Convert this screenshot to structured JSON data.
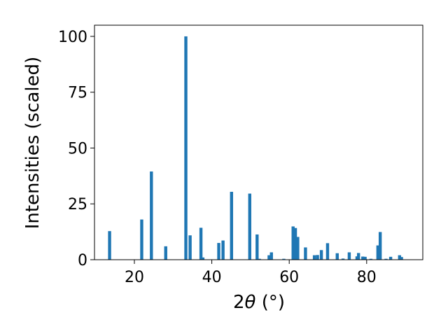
{
  "chart_data": {
    "type": "bar",
    "xlabel_prefix": "2",
    "xlabel_symbol": "θ",
    "xlabel_suffix": " (°)",
    "ylabel": "Intensities (scaled)",
    "xlim": [
      9.7,
      94.5
    ],
    "ylim": [
      0,
      105
    ],
    "x_ticks": [
      20,
      40,
      60,
      80
    ],
    "y_ticks": [
      0,
      25,
      50,
      75,
      100
    ],
    "grid": false,
    "bar_color": "#1f77b4",
    "series": [
      {
        "x": [
          13.6,
          21.9,
          24.4,
          28.1,
          33.3,
          34.4,
          37.2,
          37.7,
          41.8,
          42.9,
          45.1,
          49.8,
          51.7,
          52.3,
          54.8,
          55.4,
          58.6,
          61.0,
          61.6,
          62.2,
          64.2,
          66.5,
          67.3,
          68.3,
          69.9,
          72.4,
          73.9,
          75.5,
          77.5,
          77.9,
          79.0,
          79.6,
          81.1,
          82.9,
          83.5,
          85.0,
          86.2,
          88.5,
          89.0
        ],
        "y": [
          12.8,
          18.0,
          39.5,
          6.0,
          100.0,
          10.9,
          14.3,
          1.0,
          7.5,
          8.6,
          30.4,
          29.6,
          11.3,
          0.4,
          2.0,
          3.3,
          0.4,
          14.9,
          14.2,
          10.2,
          5.5,
          2.0,
          2.1,
          4.3,
          7.4,
          2.9,
          0.5,
          3.3,
          1.5,
          3.0,
          1.4,
          1.3,
          0.4,
          6.4,
          12.4,
          0.4,
          1.3,
          2.0,
          1.2
        ]
      }
    ]
  }
}
